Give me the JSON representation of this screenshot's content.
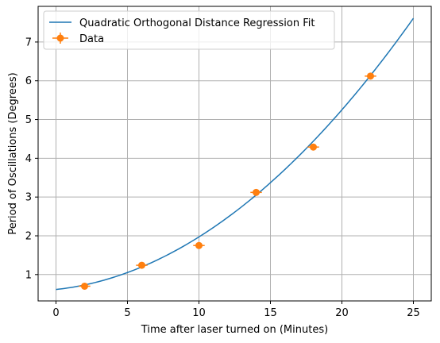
{
  "chart_data": {
    "type": "scatter",
    "title": "",
    "xlabel": "Time after laser turned on (Minutes)",
    "ylabel": "Period of Oscillations (Degrees)",
    "xlim": [
      -1.25,
      26.25
    ],
    "ylim": [
      0.32,
      7.92
    ],
    "xticks": [
      0,
      5,
      10,
      15,
      20,
      25
    ],
    "yticks": [
      1,
      2,
      3,
      4,
      5,
      6,
      7
    ],
    "grid": true,
    "legend_position": "top-left",
    "series": [
      {
        "name": "Quadratic Orthogonal Distance Regression Fit",
        "kind": "line",
        "color": "#1f77b4",
        "model": "quadratic",
        "coefficients": {
          "a": 0.00962,
          "b": 0.0394,
          "c": 0.615
        },
        "x_range": [
          0,
          25
        ]
      },
      {
        "name": "Data",
        "kind": "errorbar",
        "color": "#ff7f0e",
        "x": [
          2,
          6,
          10,
          14,
          18,
          22
        ],
        "y": [
          0.7,
          1.24,
          1.75,
          3.12,
          4.29,
          6.12
        ],
        "xerr": [
          0.4,
          0.4,
          0.4,
          0.4,
          0.4,
          0.4
        ],
        "yerr": [
          0.05,
          0.05,
          0.05,
          0.05,
          0.05,
          0.05
        ]
      }
    ]
  }
}
